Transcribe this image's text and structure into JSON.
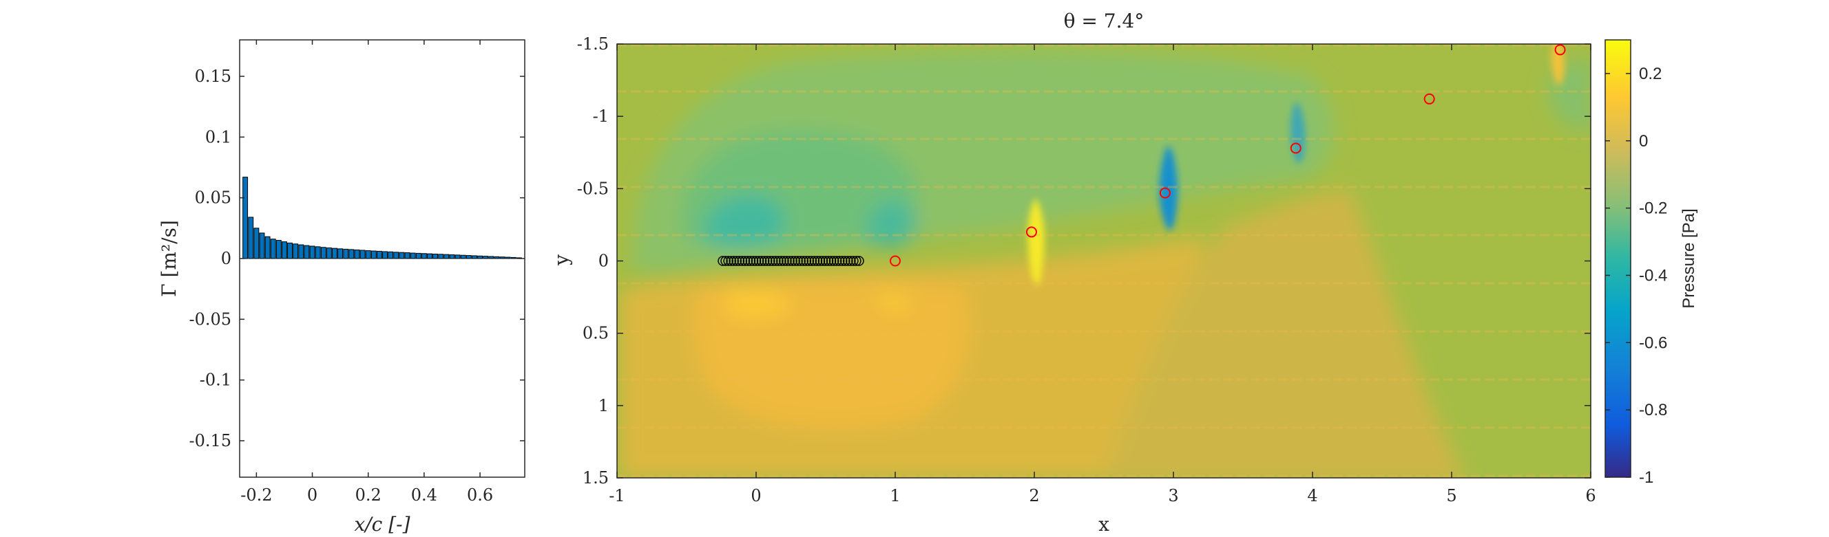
{
  "chart_data": [
    {
      "type": "bar",
      "xlabel": "x/c [-]",
      "ylabel": "Γ [m²/s]",
      "xlim": [
        -0.26,
        0.76
      ],
      "ylim": [
        -0.18,
        0.18
      ],
      "xticks": [
        -0.2,
        0,
        0.2,
        0.4,
        0.6
      ],
      "xtick_labels": [
        "-0.2",
        "0",
        "0.2",
        "0.4",
        "0.6"
      ],
      "yticks": [
        -0.15,
        -0.1,
        -0.05,
        0,
        0.05,
        0.1,
        0.15
      ],
      "ytick_labels": [
        "-0.15",
        "-0.1",
        "-0.05",
        "0",
        "0.05",
        "0.1",
        "0.15"
      ],
      "bar_color": "#0072BD",
      "x": [
        -0.24,
        -0.22,
        -0.2,
        -0.18,
        -0.16,
        -0.14,
        -0.12,
        -0.1,
        -0.08,
        -0.06,
        -0.04,
        -0.02,
        0,
        0.02,
        0.04,
        0.06,
        0.08,
        0.1,
        0.12,
        0.14,
        0.16,
        0.18,
        0.2,
        0.22,
        0.24,
        0.26,
        0.28,
        0.3,
        0.32,
        0.34,
        0.36,
        0.38,
        0.4,
        0.42,
        0.44,
        0.46,
        0.48,
        0.5,
        0.52,
        0.54,
        0.56,
        0.58,
        0.6,
        0.62,
        0.64,
        0.66,
        0.68,
        0.7,
        0.72,
        0.74
      ],
      "values": [
        0.067,
        0.034,
        0.025,
        0.021,
        0.018,
        0.016,
        0.015,
        0.0138,
        0.0128,
        0.012,
        0.0113,
        0.0107,
        0.0102,
        0.0097,
        0.0092,
        0.0088,
        0.0084,
        0.008,
        0.0077,
        0.0074,
        0.0071,
        0.0068,
        0.0065,
        0.0062,
        0.006,
        0.0057,
        0.0055,
        0.0052,
        0.005,
        0.0048,
        0.0045,
        0.0043,
        0.0041,
        0.0039,
        0.0037,
        0.0035,
        0.0033,
        0.0031,
        0.0029,
        0.0027,
        0.0025,
        0.0023,
        0.0021,
        0.0019,
        0.0017,
        0.0015,
        0.0013,
        0.0011,
        0.0009,
        0.0006
      ]
    },
    {
      "type": "heatmap",
      "title": "θ = 7.4°",
      "xlabel": "x",
      "ylabel": "y",
      "xlim": [
        -1,
        6
      ],
      "ylim": [
        -1.5,
        1.5
      ],
      "y_reversed": true,
      "xticks": [
        -1,
        0,
        1,
        2,
        3,
        4,
        5,
        6
      ],
      "xtick_labels": [
        "-1",
        "0",
        "1",
        "2",
        "3",
        "4",
        "5",
        "6"
      ],
      "yticks": [
        -1.5,
        -1,
        -0.5,
        0,
        0.5,
        1,
        1.5
      ],
      "ytick_labels": [
        "-1.5",
        "-1",
        "-0.5",
        "0",
        "0.5",
        "1",
        "1.5"
      ],
      "colorbar": {
        "label": "Pressure [Pa]",
        "clim": [
          -1,
          0.3
        ],
        "ticks": [
          0.2,
          0,
          -0.2,
          -0.4,
          -0.6,
          -0.8,
          -1
        ],
        "tick_labels": [
          "0.2",
          "0",
          "-0.2",
          "-0.4",
          "-0.6",
          "-0.8",
          "-1"
        ],
        "colormap": "parula"
      },
      "airfoil_panels": {
        "x": [
          -0.24,
          -0.22,
          -0.2,
          -0.18,
          -0.16,
          -0.14,
          -0.12,
          -0.1,
          -0.08,
          -0.06,
          -0.04,
          -0.02,
          0,
          0.02,
          0.04,
          0.06,
          0.08,
          0.1,
          0.12,
          0.14,
          0.16,
          0.18,
          0.2,
          0.22,
          0.24,
          0.26,
          0.28,
          0.3,
          0.32,
          0.34,
          0.36,
          0.38,
          0.4,
          0.42,
          0.44,
          0.46,
          0.48,
          0.5,
          0.52,
          0.54,
          0.56,
          0.58,
          0.6,
          0.62,
          0.64,
          0.66,
          0.68,
          0.7,
          0.72,
          0.74
        ],
        "y": 0,
        "marker_color": "#000000"
      },
      "wake_vortices": {
        "x": [
          1.0,
          1.98,
          2.94,
          3.88,
          4.84,
          5.78
        ],
        "y": [
          0.0,
          -0.2,
          -0.47,
          -0.78,
          -1.12,
          -1.46
        ],
        "marker_color": "#ff0000"
      },
      "field_features": [
        {
          "x": -0.15,
          "y": -0.25,
          "value": -0.35
        },
        {
          "x": 1.0,
          "y": -0.25,
          "value": -0.3
        },
        {
          "x": -0.15,
          "y": 0.25,
          "value": 0.15
        },
        {
          "x": 1.0,
          "y": 0.25,
          "value": 0.12
        },
        {
          "x": 1.98,
          "y": -0.2,
          "value": 0.3
        },
        {
          "x": 2.94,
          "y": -0.47,
          "value": -0.55
        },
        {
          "x": 3.88,
          "y": -0.78,
          "value": -0.35
        },
        {
          "x": 5.78,
          "y": -1.46,
          "value": 0.2
        }
      ]
    }
  ]
}
